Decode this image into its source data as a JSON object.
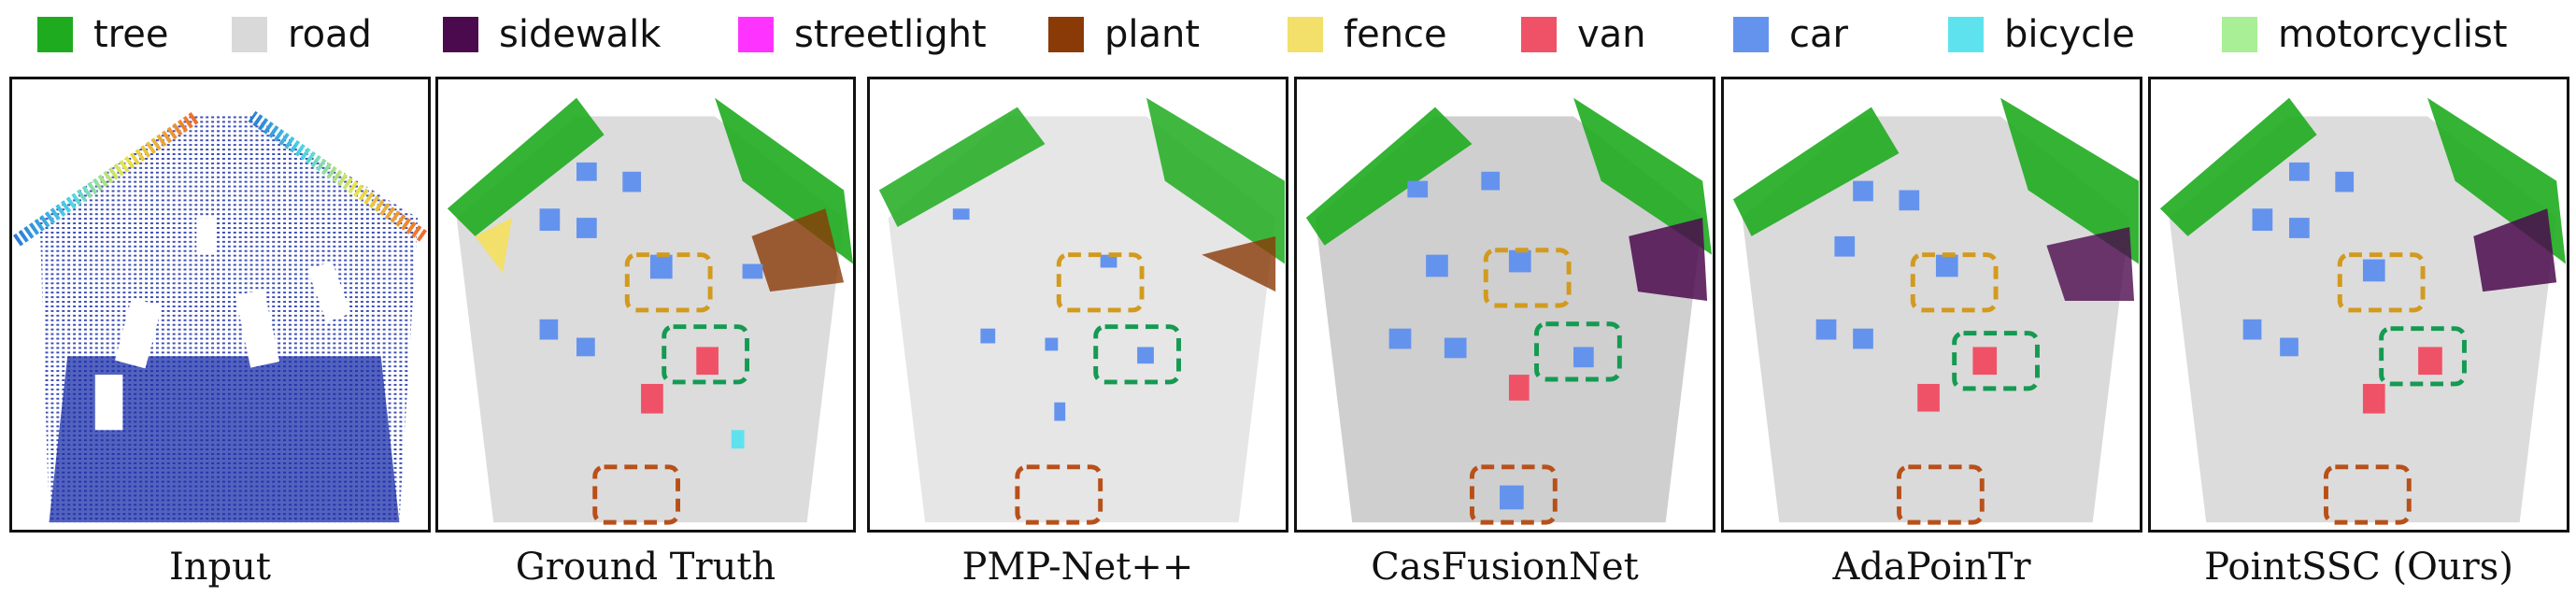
{
  "legend": [
    {
      "label": "tree",
      "color": "#1fab1f"
    },
    {
      "label": "road",
      "color": "#d9d9d9"
    },
    {
      "label": "sidewalk",
      "color": "#4b0a4e"
    },
    {
      "label": "streetlight",
      "color": "#ff33ff"
    },
    {
      "label": "plant",
      "color": "#8a3a06"
    },
    {
      "label": "fence",
      "color": "#f2e06a"
    },
    {
      "label": "van",
      "color": "#ef5266"
    },
    {
      "label": "car",
      "color": "#6493ee"
    },
    {
      "label": "bicycle",
      "color": "#5ee3ee"
    },
    {
      "label": "motorcyclist",
      "color": "#a8ef96"
    }
  ],
  "panels": [
    {
      "caption": "Input"
    },
    {
      "caption": "Ground Truth"
    },
    {
      "caption": "PMP-Net++"
    },
    {
      "caption": "CasFusionNet"
    },
    {
      "caption": "AdaPoinTr"
    },
    {
      "caption": "PointSSC (Ours)"
    }
  ],
  "highlight_colors": {
    "orange_box": "#d29a1e",
    "green_box": "#159a52",
    "brown_box": "#b8501a"
  }
}
